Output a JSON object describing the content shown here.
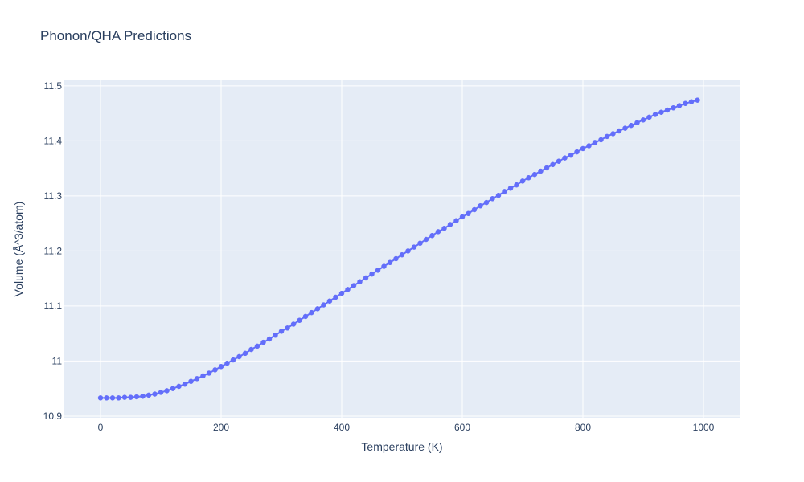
{
  "chart_data": {
    "type": "line",
    "title": "Phonon/QHA Predictions",
    "xlabel": "Temperature (K)",
    "ylabel": "Volume (Å^3/atom)",
    "xlim": [
      -60,
      1060
    ],
    "ylim": [
      10.897,
      11.51
    ],
    "x_ticks": [
      0,
      200,
      400,
      600,
      800,
      1000
    ],
    "y_ticks": [
      10.9,
      11.0,
      11.1,
      11.2,
      11.3,
      11.4,
      11.5
    ],
    "x_tick_labels": [
      "0",
      "200",
      "400",
      "600",
      "800",
      "1000"
    ],
    "y_tick_labels": [
      "10.9",
      "11",
      "11.1",
      "11.2",
      "11.3",
      "11.4",
      "11.5"
    ],
    "grid": true,
    "legend": "none",
    "colors": {
      "series": "#636efa",
      "plot_bg": "#e5ecf6",
      "grid": "#ffffff",
      "text": "#2a3f5f"
    },
    "series": [
      {
        "x": [
          0,
          10,
          20,
          30,
          40,
          50,
          60,
          70,
          80,
          90,
          100,
          110,
          120,
          130,
          140,
          150,
          160,
          170,
          180,
          190,
          200,
          210,
          220,
          230,
          240,
          250,
          260,
          270,
          280,
          290,
          300,
          310,
          320,
          330,
          340,
          350,
          360,
          370,
          380,
          390,
          400,
          410,
          420,
          430,
          440,
          450,
          460,
          470,
          480,
          490,
          500,
          510,
          520,
          530,
          540,
          550,
          560,
          570,
          580,
          590,
          600,
          610,
          620,
          630,
          640,
          650,
          660,
          670,
          680,
          690,
          700,
          710,
          720,
          730,
          740,
          750,
          760,
          770,
          780,
          790,
          800,
          810,
          820,
          830,
          840,
          850,
          860,
          870,
          880,
          890,
          900,
          910,
          920,
          930,
          940,
          950,
          960,
          970,
          980,
          990
        ],
        "y": [
          10.933,
          10.933,
          10.933,
          10.933,
          10.934,
          10.934,
          10.935,
          10.936,
          10.938,
          10.94,
          10.943,
          10.946,
          10.95,
          10.954,
          10.958,
          10.963,
          10.968,
          10.973,
          10.978,
          10.984,
          10.99,
          10.996,
          11.002,
          11.008,
          11.014,
          11.021,
          11.027,
          11.034,
          11.04,
          11.047,
          11.054,
          11.06,
          11.067,
          11.074,
          11.081,
          11.088,
          11.095,
          11.102,
          11.109,
          11.116,
          11.123,
          11.13,
          11.137,
          11.144,
          11.151,
          11.158,
          11.165,
          11.172,
          11.179,
          11.186,
          11.193,
          11.2,
          11.207,
          11.214,
          11.221,
          11.228,
          11.235,
          11.241,
          11.248,
          11.255,
          11.262,
          11.268,
          11.275,
          11.282,
          11.288,
          11.295,
          11.301,
          11.308,
          11.314,
          11.32,
          11.327,
          11.333,
          11.339,
          11.345,
          11.351,
          11.357,
          11.363,
          11.369,
          11.374,
          11.38,
          11.386,
          11.391,
          11.397,
          11.402,
          11.408,
          11.413,
          11.418,
          11.423,
          11.428,
          11.433,
          11.438,
          11.443,
          11.448,
          11.452,
          11.456,
          11.46,
          11.464,
          11.468,
          11.471,
          11.474
        ]
      }
    ]
  }
}
